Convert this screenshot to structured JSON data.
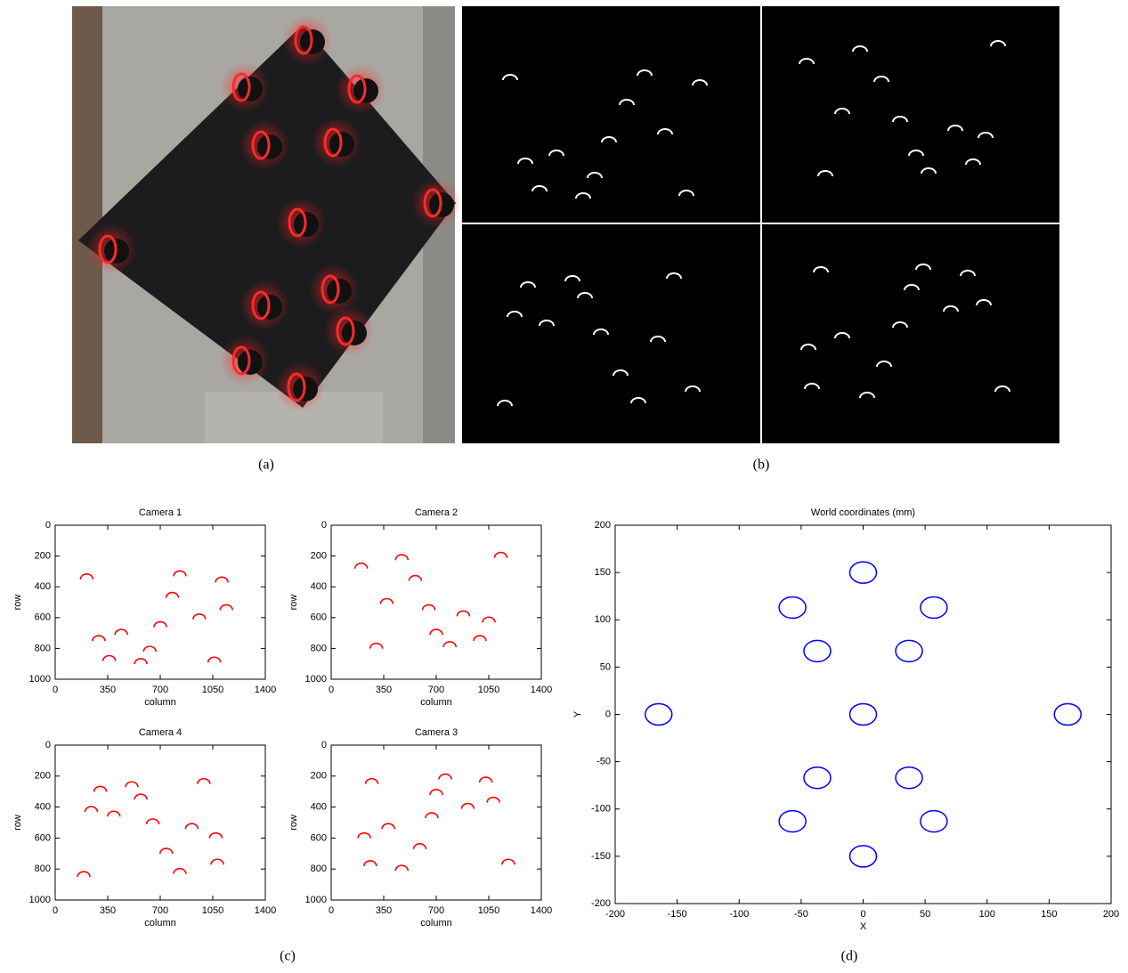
{
  "captions": [
    "(a)",
    "(b)",
    "(c)",
    "(d)"
  ],
  "chart_data": [
    {
      "type": "scatter",
      "marker": "arc",
      "title": "Camera 1",
      "x_label": "column",
      "y_label": "row",
      "color": "#ff0000",
      "x": [
        210,
        830,
        1110,
        780,
        1140,
        960,
        700,
        290,
        440,
        630,
        360,
        570,
        1060
      ],
      "values": [
        340,
        320,
        360,
        460,
        540,
        600,
        650,
        740,
        700,
        810,
        870,
        890,
        880
      ],
      "xlim": [
        0,
        1400
      ],
      "ylim": [
        0,
        1000
      ],
      "y_reversed": true,
      "xticks": [
        0,
        350,
        700,
        1050,
        1400
      ],
      "yticks": [
        0,
        200,
        400,
        600,
        800,
        1000
      ]
    },
    {
      "type": "scatter",
      "marker": "arc",
      "title": "Camera 2",
      "x_label": "column",
      "y_label": "row",
      "color": "#ff0000",
      "x": [
        200,
        470,
        1130,
        560,
        370,
        650,
        880,
        1050,
        700,
        790,
        990,
        300
      ],
      "values": [
        270,
        215,
        200,
        350,
        500,
        540,
        580,
        620,
        700,
        780,
        740,
        790
      ],
      "xlim": [
        0,
        1400
      ],
      "ylim": [
        0,
        1000
      ],
      "y_reversed": true,
      "xticks": [
        0,
        350,
        700,
        1050,
        1400
      ],
      "yticks": [
        0,
        200,
        400,
        600,
        800,
        1000
      ]
    },
    {
      "type": "scatter",
      "marker": "arc",
      "title": "Camera 4",
      "x_label": "column",
      "y_label": "row",
      "color": "#ff0000",
      "x": [
        300,
        510,
        990,
        240,
        570,
        390,
        650,
        910,
        1070,
        740,
        830,
        1080,
        190
      ],
      "values": [
        290,
        260,
        240,
        420,
        340,
        450,
        500,
        530,
        590,
        690,
        820,
        760,
        840
      ],
      "xlim": [
        0,
        1400
      ],
      "ylim": [
        0,
        1000
      ],
      "y_reversed": true,
      "xticks": [
        0,
        350,
        700,
        1050,
        1400
      ],
      "yticks": [
        0,
        200,
        400,
        600,
        800,
        1000
      ]
    },
    {
      "type": "scatter",
      "marker": "arc",
      "title": "Camera 3",
      "x_label": "column",
      "y_label": "row",
      "color": "#ff0000",
      "x": [
        270,
        760,
        1030,
        700,
        1080,
        910,
        380,
        670,
        220,
        590,
        260,
        470,
        1180
      ],
      "values": [
        240,
        210,
        230,
        310,
        360,
        400,
        530,
        460,
        590,
        660,
        770,
        800,
        760
      ],
      "xlim": [
        0,
        1400
      ],
      "ylim": [
        0,
        1000
      ],
      "y_reversed": true,
      "xticks": [
        0,
        350,
        700,
        1050,
        1400
      ],
      "yticks": [
        0,
        200,
        400,
        600,
        800,
        1000
      ]
    },
    {
      "type": "scatter",
      "marker": "circle",
      "title": "World coordinates (mm)",
      "x_label": "X",
      "y_label": "Y",
      "color": "#0000ff",
      "x": [
        0,
        -57,
        57,
        -37,
        37,
        -165,
        0,
        165,
        -37,
        37,
        -57,
        57,
        0
      ],
      "values": [
        150,
        113,
        113,
        67,
        67,
        0,
        0,
        0,
        -67,
        -67,
        -113,
        -113,
        -150
      ],
      "xlim": [
        -200,
        200
      ],
      "ylim": [
        -200,
        200
      ],
      "y_reversed": false,
      "xticks": [
        -200,
        -150,
        -100,
        -50,
        0,
        50,
        100,
        150,
        200
      ],
      "yticks": [
        -200,
        -150,
        -100,
        -50,
        0,
        50,
        100,
        150,
        200
      ]
    }
  ]
}
